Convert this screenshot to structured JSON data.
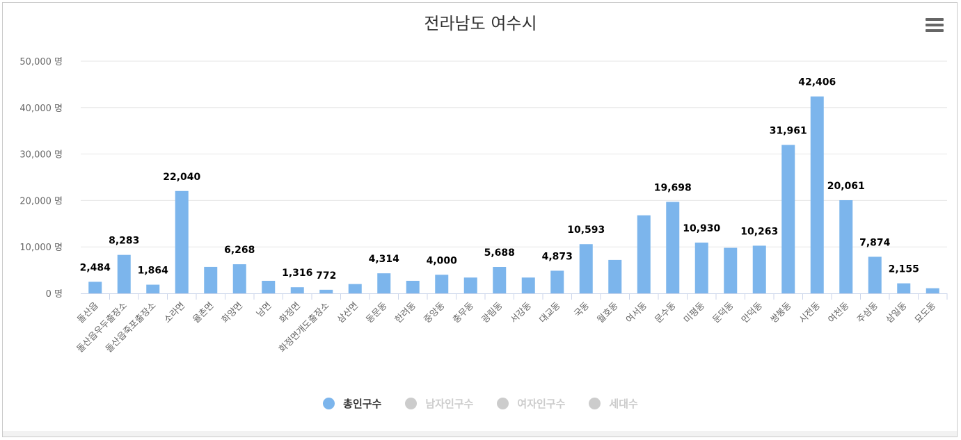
{
  "chart_data": {
    "type": "bar",
    "title": "전라남도 여수시",
    "unit": "명",
    "ylim": [
      0,
      50000
    ],
    "yticks": [
      0,
      10000,
      20000,
      30000,
      40000,
      50000
    ],
    "ytick_labels": [
      "0 명",
      "10,000 명",
      "20,000 명",
      "30,000 명",
      "40,000 명",
      "50,000 명"
    ],
    "categories": [
      "돌산읍",
      "돌산읍우두출장소",
      "돌산읍죽포출장소",
      "소라면",
      "율촌면",
      "화양면",
      "남면",
      "화정면",
      "화정면개도출장소",
      "삼산면",
      "동문동",
      "한려동",
      "중앙동",
      "충무동",
      "광림동",
      "서강동",
      "대교동",
      "국동",
      "월호동",
      "여서동",
      "문수동",
      "미평동",
      "둔덕동",
      "만덕동",
      "쌍봉동",
      "시전동",
      "여천동",
      "주삼동",
      "삼일동",
      "묘도동"
    ],
    "series": [
      {
        "name": "총인구수",
        "color": "#7cb5ec",
        "values": [
          2484,
          8283,
          1864,
          22040,
          5700,
          6268,
          2700,
          1316,
          772,
          2000,
          4314,
          2700,
          4000,
          3400,
          5688,
          3400,
          4873,
          10593,
          7200,
          16800,
          19698,
          10930,
          9800,
          10263,
          31961,
          42406,
          20061,
          7874,
          2155,
          1100
        ],
        "labels": [
          "2,484",
          "8,283",
          "1,864",
          "22,040",
          "",
          "6,268",
          "",
          "1,316",
          "772",
          "",
          "4,314",
          "",
          "4,000",
          "",
          "5,688",
          "",
          "4,873",
          "10,593",
          "",
          "",
          "19,698",
          "10,930",
          "",
          "10,263",
          "31,961",
          "42,406",
          "20,061",
          "7,874",
          "2,155",
          ""
        ]
      }
    ],
    "legend": [
      {
        "name": "총인구수",
        "color": "#7cb5ec",
        "text_color": "#333333",
        "active": true
      },
      {
        "name": "남자인구수",
        "color": "#cccccc",
        "text_color": "#cccccc",
        "active": false
      },
      {
        "name": "여자인구수",
        "color": "#cccccc",
        "text_color": "#cccccc",
        "active": false
      },
      {
        "name": "세대수",
        "color": "#cccccc",
        "text_color": "#cccccc",
        "active": false
      }
    ],
    "legend_position": "bottom-center",
    "grid": true
  },
  "menu": {
    "icon": "hamburger-menu-icon"
  }
}
